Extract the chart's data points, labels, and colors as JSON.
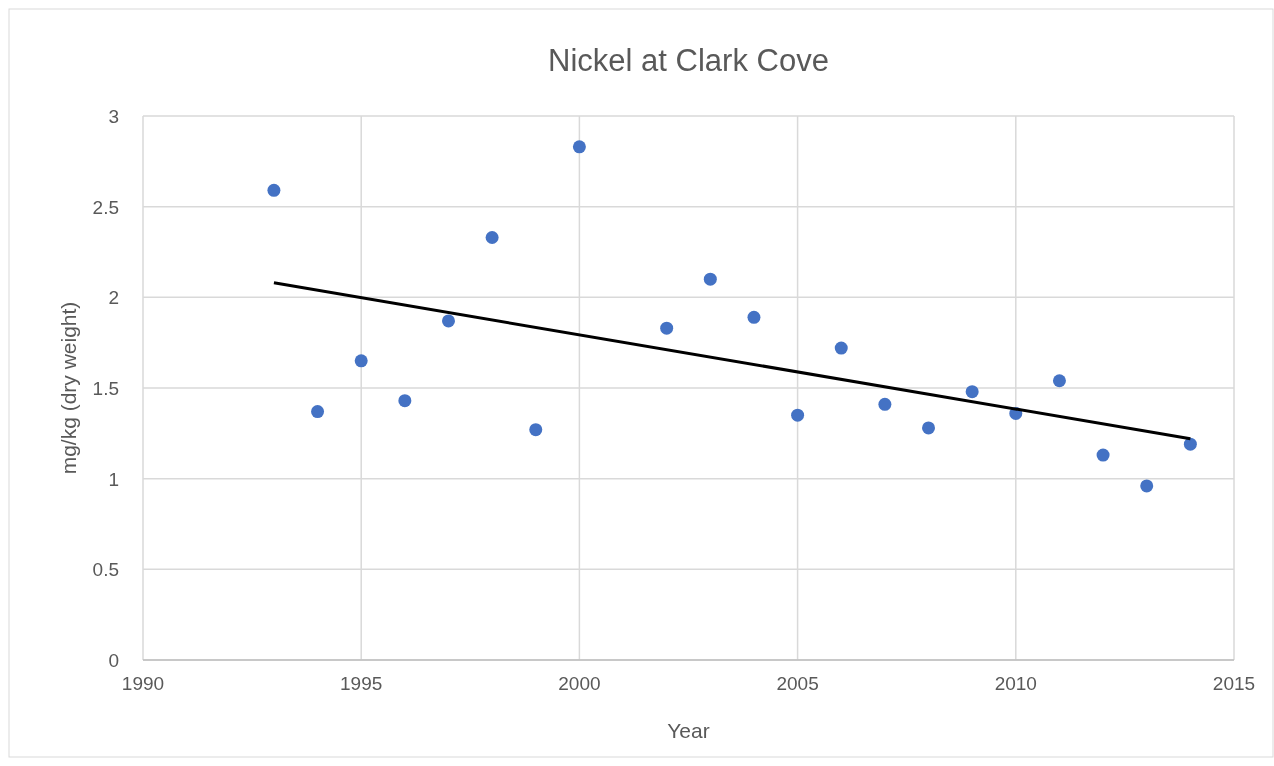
{
  "chart_data": {
    "type": "scatter",
    "title": "Nickel at Clark Cove",
    "xlabel": "Year",
    "ylabel": "mg/kg (dry weight)",
    "xlim": [
      1990,
      2015
    ],
    "xticks": [
      1990,
      1995,
      2000,
      2005,
      2010,
      2015
    ],
    "ylim": [
      0,
      3
    ],
    "yticks": [
      0,
      0.5,
      1,
      1.5,
      2,
      2.5,
      3
    ],
    "grid": true,
    "series": [
      {
        "color": "#4472c4",
        "marker": "circle",
        "x": [
          1993,
          1994,
          1995,
          1996,
          1997,
          1998,
          1999,
          2000,
          2002,
          2003,
          2004,
          2005,
          2006,
          2007,
          2008,
          2009,
          2010,
          2011,
          2012,
          2013,
          2014
        ],
        "values": [
          2.59,
          1.37,
          1.65,
          1.43,
          1.87,
          2.33,
          1.27,
          2.83,
          1.83,
          2.1,
          1.89,
          1.35,
          1.72,
          1.41,
          1.28,
          1.48,
          1.36,
          1.54,
          1.13,
          0.96,
          1.19
        ]
      },
      {
        "type": "line",
        "color": "#000000",
        "marker": "none",
        "x": [
          1993,
          2014
        ],
        "values": [
          2.08,
          1.22
        ]
      }
    ]
  }
}
